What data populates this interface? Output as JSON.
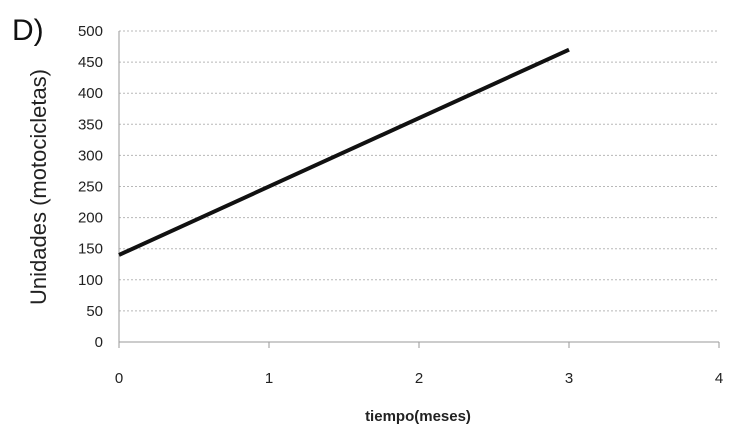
{
  "panel_label": "D)",
  "chart_data": {
    "type": "line",
    "xlabel": "tiempo(meses)",
    "ylabel": "Unidades (motocicletas)",
    "xlim": [
      0,
      4
    ],
    "ylim": [
      0,
      500
    ],
    "x_ticks": [
      0,
      1,
      2,
      3,
      4
    ],
    "y_ticks": [
      0,
      50,
      100,
      150,
      200,
      250,
      300,
      350,
      400,
      450,
      500
    ],
    "grid": true,
    "series": [
      {
        "x": [
          0,
          3
        ],
        "y": [
          140,
          470
        ],
        "color": "#111111"
      }
    ]
  }
}
